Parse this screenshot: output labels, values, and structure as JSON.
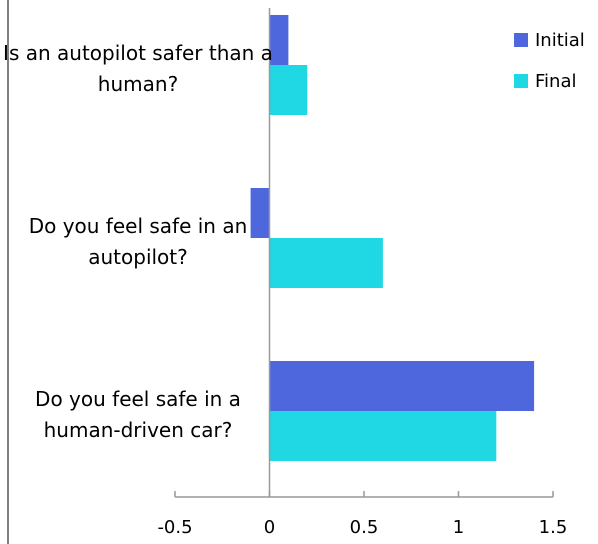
{
  "chart_data": {
    "type": "bar",
    "orientation": "horizontal",
    "categories": [
      "Is an autopilot safer than a human?",
      "Do you feel safe in an autopilot?",
      "Do you feel safe in a human-driven car?"
    ],
    "series": [
      {
        "name": "Initial",
        "color": "#4f67dd",
        "values": [
          0.1,
          -0.1,
          1.4
        ]
      },
      {
        "name": "Final",
        "color": "#20d8e4",
        "values": [
          0.2,
          0.6,
          1.2
        ]
      }
    ],
    "xlim": [
      -0.5,
      1.5
    ],
    "xticks": [
      -0.5,
      0,
      0.5,
      1,
      1.5
    ],
    "legend": "top-right"
  }
}
